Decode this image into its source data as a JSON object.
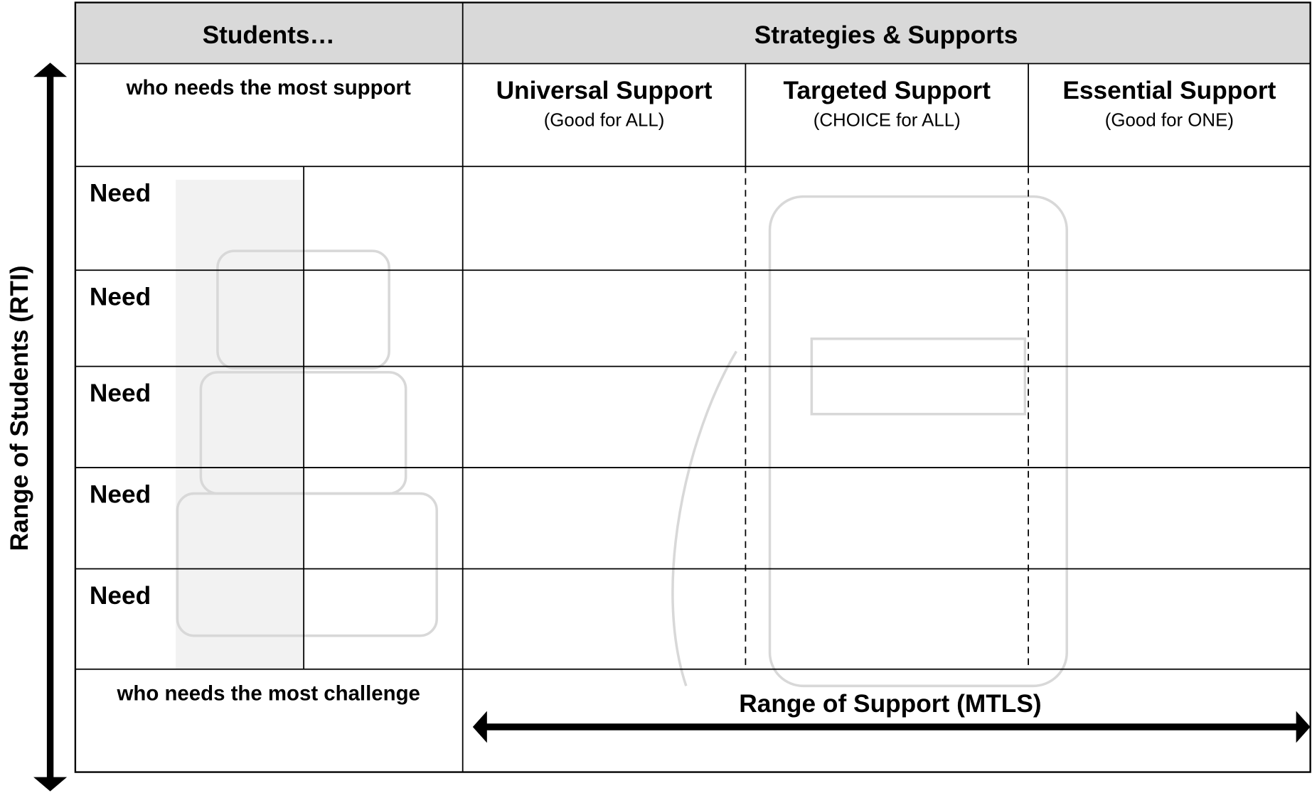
{
  "header": {
    "students": "Students…",
    "strategies": "Strategies & Supports"
  },
  "top_row": {
    "label": "who needs the most support",
    "columns": [
      {
        "title": "Universal Support",
        "subtitle": "(Good for ALL)"
      },
      {
        "title": "Targeted Support",
        "subtitle": "(CHOICE for ALL)"
      },
      {
        "title": "Essential Support",
        "subtitle": "(Good for ONE)"
      }
    ]
  },
  "need_rows": [
    "Need",
    "Need",
    "Need",
    "Need",
    "Need"
  ],
  "bottom_row": {
    "label": "who needs the most challenge",
    "axis_label": "Range of Support (MTLS)"
  },
  "side_axis_label": "Range of Students (RTI)"
}
